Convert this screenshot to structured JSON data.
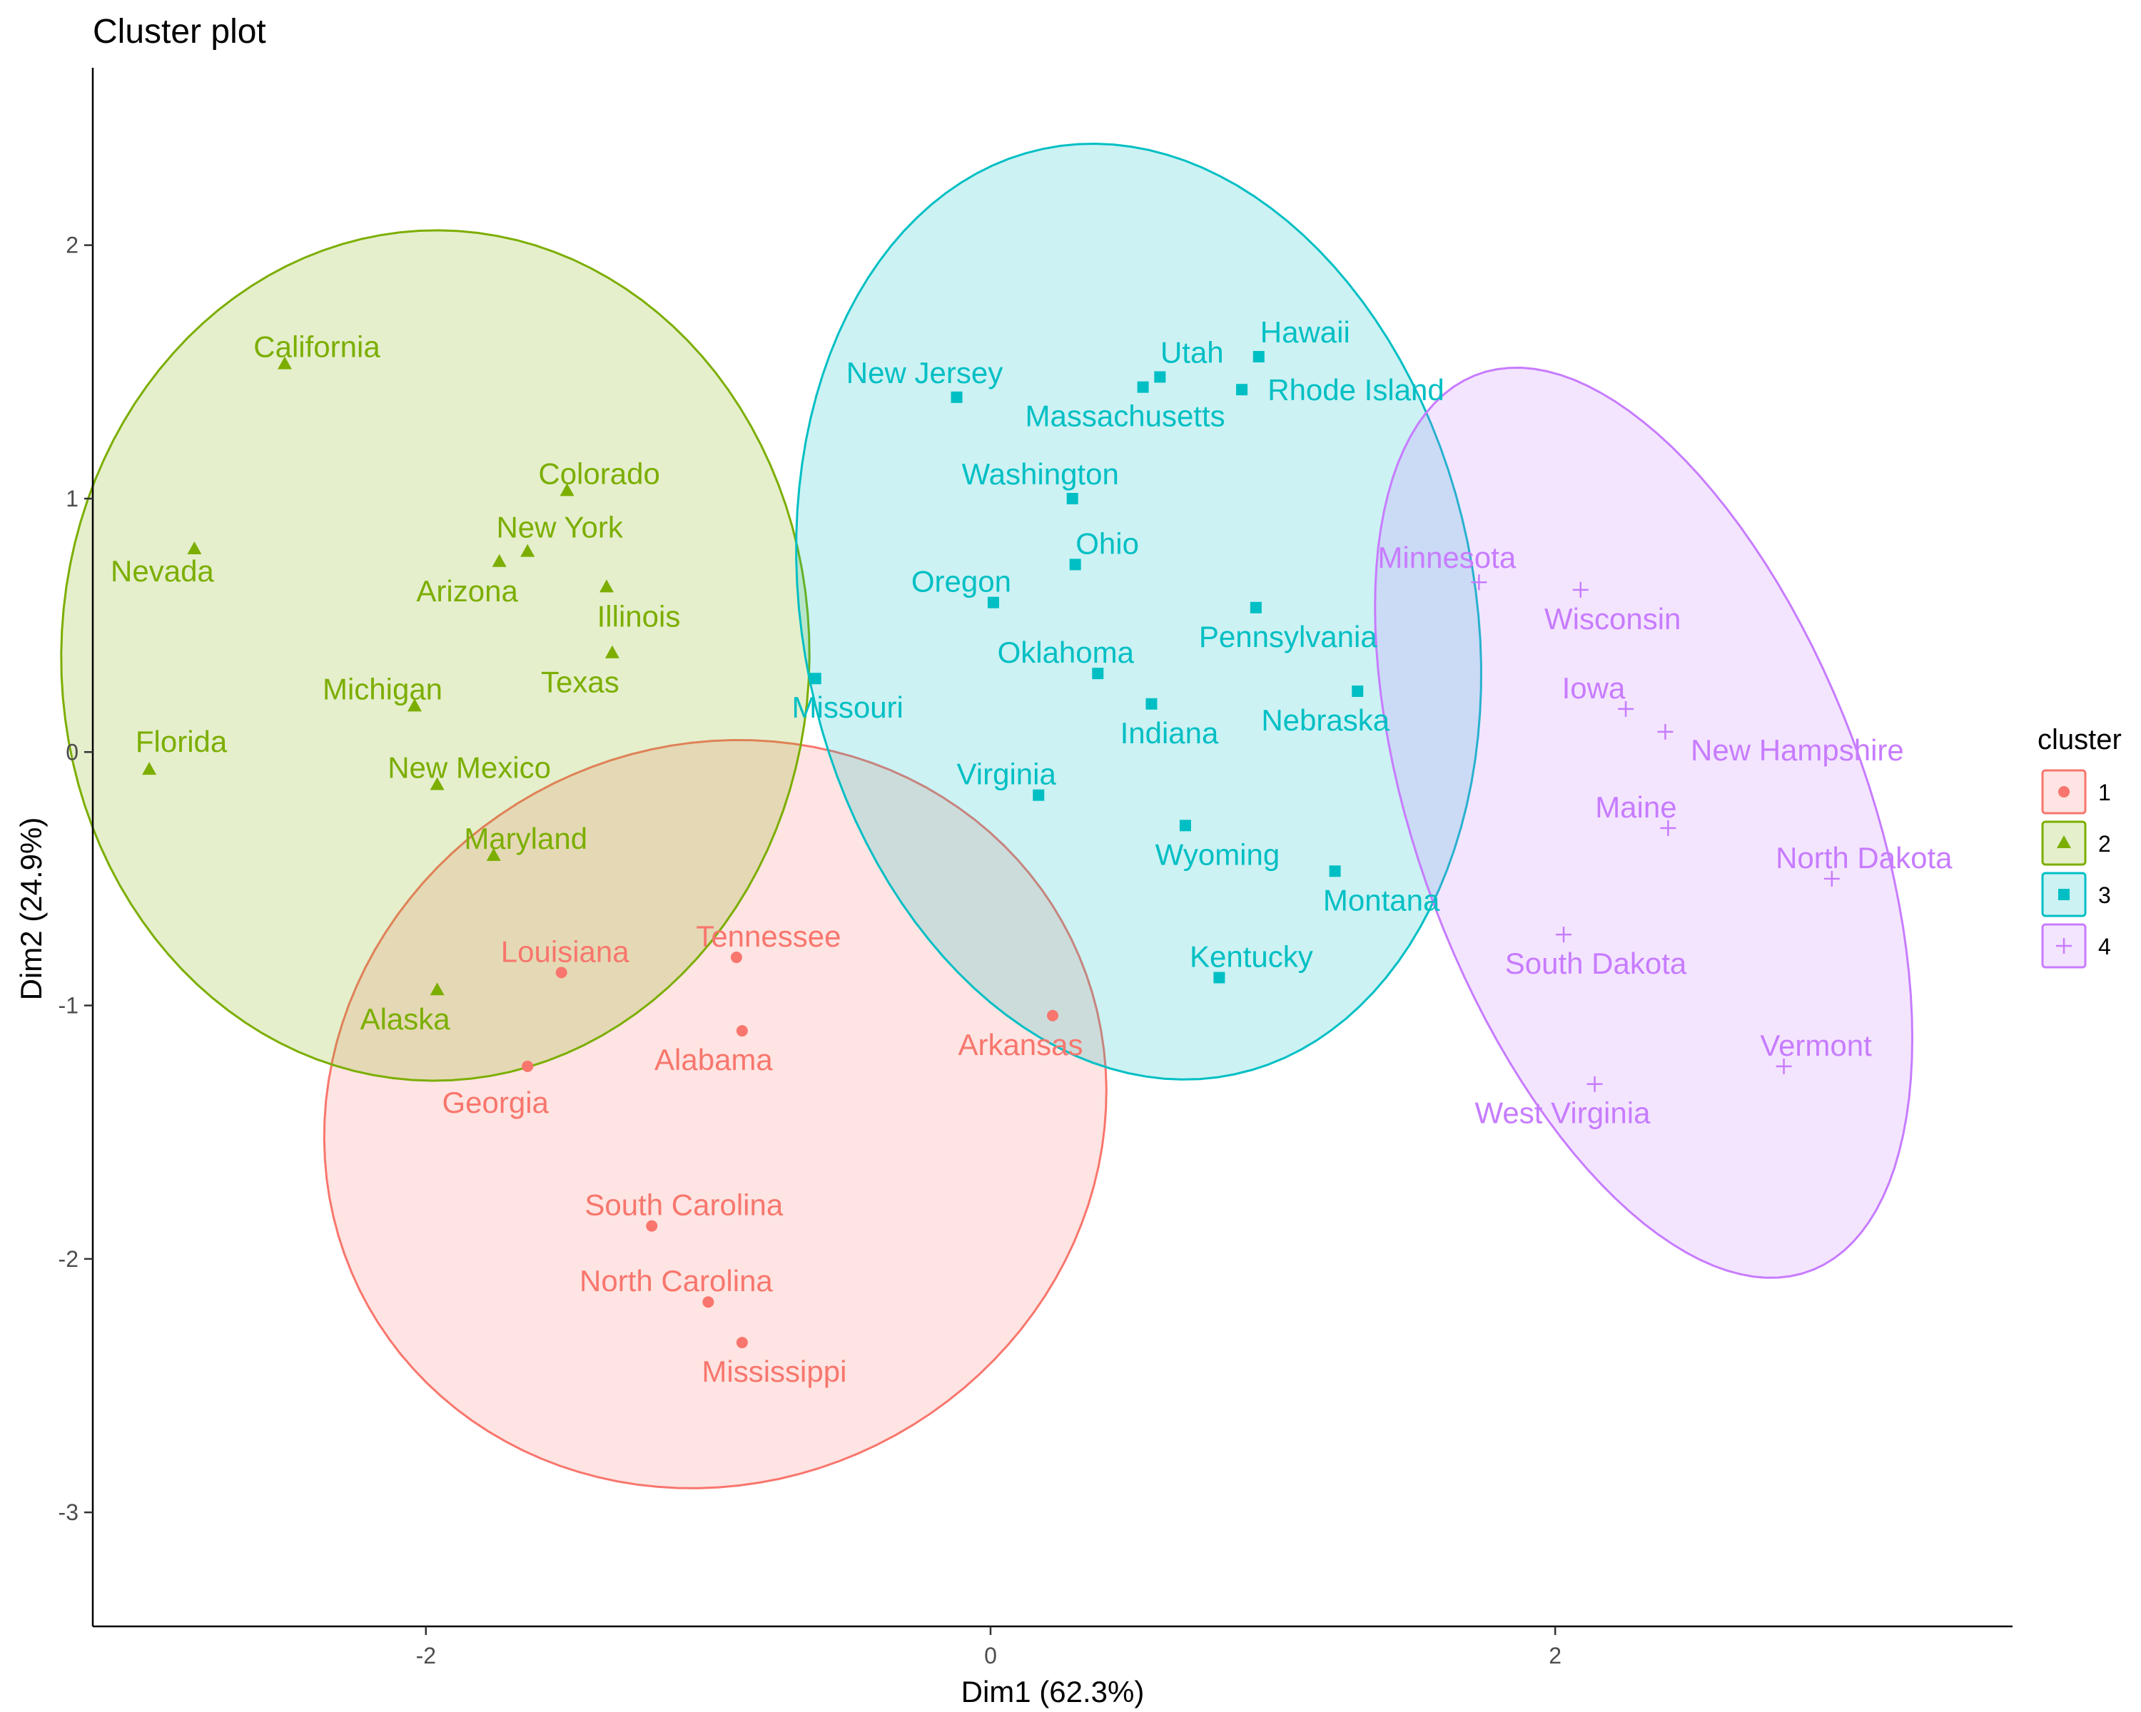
{
  "chart_data": {
    "type": "scatter",
    "title": "Cluster plot",
    "xlabel": "Dim1 (62.3%)",
    "ylabel": "Dim2 (24.9%)",
    "xlim": [
      -3.18,
      3.62
    ],
    "ylim": [
      -3.45,
      2.7
    ],
    "xticks": [
      -2,
      0,
      2
    ],
    "yticks": [
      -3,
      -2,
      -1,
      0,
      1,
      2
    ],
    "xtick_labels": [
      "-2",
      "0",
      "2"
    ],
    "ytick_labels": [
      "-3",
      "-2",
      "-1",
      "0",
      "1",
      "2"
    ],
    "grid": false,
    "legend": {
      "title": "cluster",
      "placement": "right"
    },
    "series": [
      {
        "name": "1",
        "color": "#F8766D",
        "marker": "circle",
        "points": [
          {
            "label": "Louisiana",
            "x": -1.52,
            "y": -0.87
          },
          {
            "label": "Tennessee",
            "x": -0.9,
            "y": -0.81
          },
          {
            "label": "Alabama",
            "x": -0.88,
            "y": -1.1
          },
          {
            "label": "Georgia",
            "x": -1.64,
            "y": -1.24
          },
          {
            "label": "Arkansas",
            "x": 0.22,
            "y": -1.04
          },
          {
            "label": "South Carolina",
            "x": -1.2,
            "y": -1.87
          },
          {
            "label": "North Carolina",
            "x": -1.0,
            "y": -2.17
          },
          {
            "label": "Mississippi",
            "x": -0.88,
            "y": -2.33
          }
        ]
      },
      {
        "name": "2",
        "color": "#7CAE00",
        "marker": "triangle",
        "points": [
          {
            "label": "California",
            "x": -2.5,
            "y": 1.53
          },
          {
            "label": "Nevada",
            "x": -2.82,
            "y": 0.8
          },
          {
            "label": "Colorado",
            "x": -1.5,
            "y": 1.03
          },
          {
            "label": "New York",
            "x": -1.64,
            "y": 0.79
          },
          {
            "label": "Arizona",
            "x": -1.74,
            "y": 0.75
          },
          {
            "label": "Illinois",
            "x": -1.36,
            "y": 0.65
          },
          {
            "label": "Texas",
            "x": -1.34,
            "y": 0.39
          },
          {
            "label": "Michigan",
            "x": -2.04,
            "y": 0.18
          },
          {
            "label": "Florida",
            "x": -2.98,
            "y": -0.07
          },
          {
            "label": "New Mexico",
            "x": -1.96,
            "y": -0.13
          },
          {
            "label": "Maryland",
            "x": -1.76,
            "y": -0.41
          },
          {
            "label": "Alaska",
            "x": -1.96,
            "y": -0.94
          }
        ]
      },
      {
        "name": "3",
        "color": "#00BFC4",
        "marker": "square",
        "points": [
          {
            "label": "Hawaii",
            "x": 0.95,
            "y": 1.56
          },
          {
            "label": "Utah",
            "x": 0.6,
            "y": 1.48
          },
          {
            "label": "Rhode Island",
            "x": 0.89,
            "y": 1.43
          },
          {
            "label": "Massachusetts",
            "x": 0.54,
            "y": 1.44
          },
          {
            "label": "New Jersey",
            "x": -0.12,
            "y": 1.4
          },
          {
            "label": "Washington",
            "x": 0.29,
            "y": 1.0
          },
          {
            "label": "Ohio",
            "x": 0.3,
            "y": 0.74
          },
          {
            "label": "Oregon",
            "x": 0.01,
            "y": 0.59
          },
          {
            "label": "Pennsylvania",
            "x": 0.94,
            "y": 0.57
          },
          {
            "label": "Oklahoma",
            "x": 0.38,
            "y": 0.31
          },
          {
            "label": "Indiana",
            "x": 0.57,
            "y": 0.19
          },
          {
            "label": "Nebraska",
            "x": 1.3,
            "y": 0.24
          },
          {
            "label": "Missouri",
            "x": -0.62,
            "y": 0.29
          },
          {
            "label": "Virginia",
            "x": 0.17,
            "y": -0.17
          },
          {
            "label": "Wyoming",
            "x": 0.69,
            "y": -0.29
          },
          {
            "label": "Montana",
            "x": 1.22,
            "y": -0.47
          },
          {
            "label": "Kentucky",
            "x": 0.81,
            "y": -0.89
          }
        ]
      },
      {
        "name": "4",
        "color": "#C77CFF",
        "marker": "plus",
        "points": [
          {
            "label": "Minnesota",
            "x": 1.73,
            "y": 0.67
          },
          {
            "label": "Wisconsin",
            "x": 2.09,
            "y": 0.64
          },
          {
            "label": "Iowa",
            "x": 2.25,
            "y": 0.17
          },
          {
            "label": "New Hampshire",
            "x": 2.39,
            "y": 0.08
          },
          {
            "label": "Maine",
            "x": 2.4,
            "y": -0.3
          },
          {
            "label": "North Dakota",
            "x": 2.98,
            "y": -0.5
          },
          {
            "label": "South Dakota",
            "x": 2.03,
            "y": -0.72
          },
          {
            "label": "Vermont",
            "x": 2.81,
            "y": -1.24
          },
          {
            "label": "West Virginia",
            "x": 2.14,
            "y": -1.31
          }
        ]
      }
    ]
  }
}
